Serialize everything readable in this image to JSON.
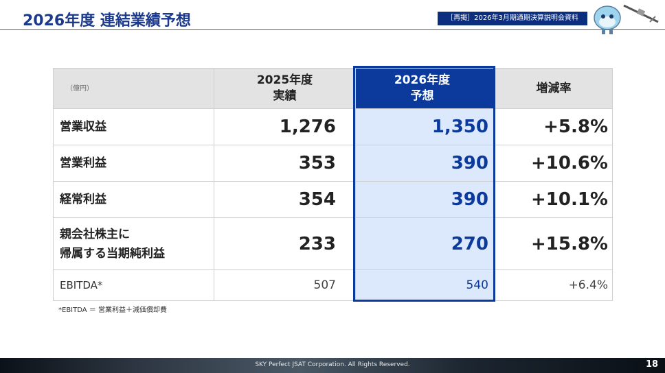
{
  "header": {
    "title": "2026年度 連結業績予想",
    "badge": "［再掲］2026年3月期通期決算説明会資料"
  },
  "table": {
    "header": [
      [
        "（億円）"
      ],
      [
        "2025年度",
        "実績"
      ],
      [
        "2026年度",
        "予想"
      ],
      [
        "増減率"
      ]
    ],
    "rows": [
      [
        [
          "営業収益"
        ],
        "1,276",
        "1,350",
        "+5.8%"
      ],
      [
        [
          "営業利益"
        ],
        "353",
        "390",
        "+10.6%"
      ],
      [
        [
          "経常利益"
        ],
        "354",
        "390",
        "+10.1%"
      ],
      [
        [
          "親会社株主に",
          "帰属する当期純利益"
        ],
        "233",
        "270",
        "+15.8%"
      ],
      [
        [
          "EBITDA*"
        ],
        "507",
        "540",
        "+6.4%"
      ]
    ]
  },
  "footnote": "*EBITDA ＝ 営業利益＋減価償却費",
  "footer": {
    "copyright": "SKY Perfect JSAT Corporation. All Rights Reserved.",
    "page": "18"
  }
}
